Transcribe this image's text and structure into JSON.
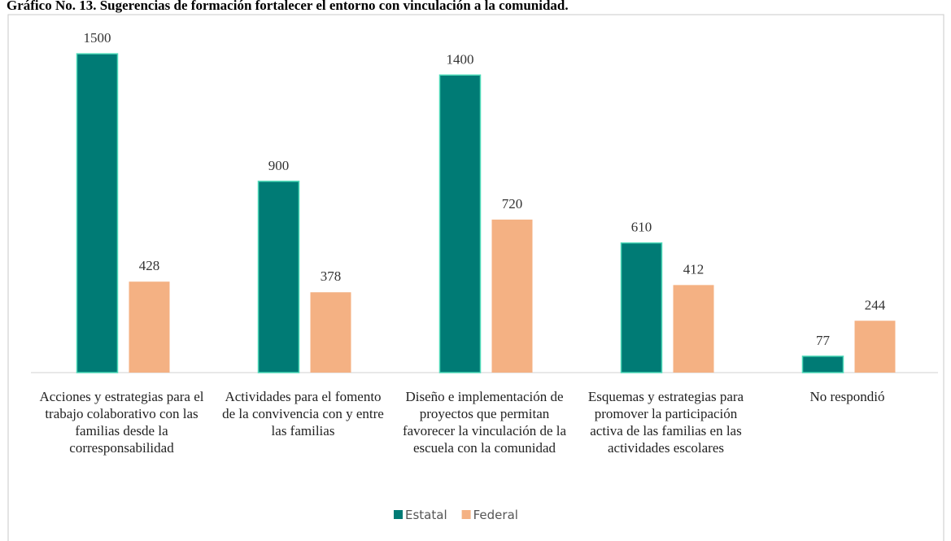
{
  "chart_data": {
    "type": "bar",
    "title": "Gráfico No. 13. Sugerencias de formación fortalecer el entorno con vinculación a la comunidad.",
    "categories": [
      "Acciones y estrategias para el trabajo colaborativo con las familias desde la corresponsabilidad",
      "Actividades para el fomento de la convivencia con y entre las familias",
      "Diseño e implementación de proyectos que permitan favorecer la vinculación de la escuela con la comunidad",
      "Esquemas y estrategias para promover la participación activa de las familias en las actividades escolares",
      "No respondió"
    ],
    "series": [
      {
        "name": "Estatal",
        "color": "#007b75",
        "values": [
          1500,
          900,
          1400,
          610,
          77
        ]
      },
      {
        "name": "Federal",
        "color": "#f4b183",
        "values": [
          428,
          378,
          720,
          412,
          244
        ]
      }
    ],
    "ylim": [
      0,
      1600
    ],
    "legend": "bottom"
  }
}
